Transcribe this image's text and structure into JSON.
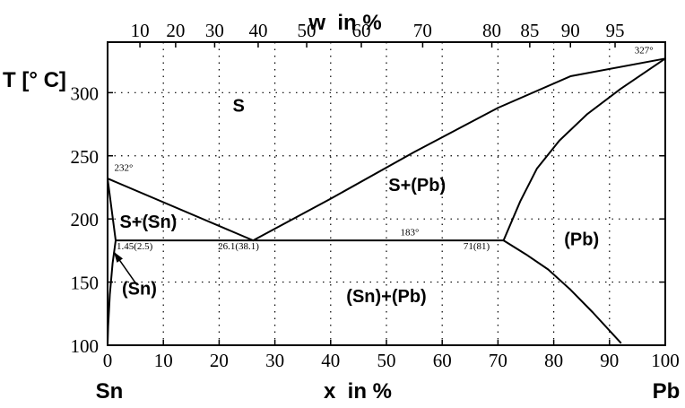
{
  "diagram": {
    "top_axis": {
      "title": "w  in %",
      "ticks": [
        {
          "label": "10",
          "x": 5.8
        },
        {
          "label": "20",
          "x": 12.2
        },
        {
          "label": "30",
          "x": 19.2
        },
        {
          "label": "40",
          "x": 27.0
        },
        {
          "label": "50",
          "x": 35.7
        },
        {
          "label": "60",
          "x": 45.5
        },
        {
          "label": "70",
          "x": 56.5
        },
        {
          "label": "80",
          "x": 68.9
        },
        {
          "label": "85",
          "x": 75.7
        },
        {
          "label": "90",
          "x": 83.0
        },
        {
          "label": "95",
          "x": 91.0
        }
      ]
    },
    "bottom_axis": {
      "title": "x  in %",
      "left_label": "Sn",
      "right_label": "Pb",
      "range": [
        0,
        100
      ],
      "ticks": [
        "0",
        "10",
        "20",
        "30",
        "40",
        "50",
        "60",
        "70",
        "80",
        "90",
        "100"
      ]
    },
    "left_axis": {
      "title": "T [° C]",
      "range": [
        100,
        340
      ],
      "ticks": [
        "100",
        "150",
        "200",
        "250",
        "300"
      ]
    },
    "grid": true,
    "grid_style": "dotted",
    "curves": [
      {
        "name": "liquidus-left",
        "points": [
          [
            0,
            232
          ],
          [
            26.1,
            183
          ]
        ]
      },
      {
        "name": "liquidus-right",
        "points": [
          [
            26.1,
            183
          ],
          [
            40,
            216
          ],
          [
            55,
            253
          ],
          [
            70,
            288
          ],
          [
            83,
            313
          ],
          [
            100,
            327
          ]
        ]
      },
      {
        "name": "eutectic-line",
        "points": [
          [
            1.45,
            183
          ],
          [
            71,
            183
          ]
        ]
      },
      {
        "name": "solidus-left",
        "points": [
          [
            0,
            232
          ],
          [
            1.45,
            183
          ]
        ]
      },
      {
        "name": "solvus-left",
        "points": [
          [
            1.45,
            183
          ],
          [
            0.9,
            165
          ],
          [
            0.4,
            140
          ],
          [
            0.1,
            115
          ],
          [
            0,
            100
          ]
        ]
      },
      {
        "name": "solidus-right",
        "points": [
          [
            71,
            183
          ],
          [
            74,
            214
          ],
          [
            77,
            240
          ],
          [
            81,
            262
          ],
          [
            86,
            283
          ],
          [
            92,
            303
          ],
          [
            100,
            327
          ]
        ]
      },
      {
        "name": "solvus-right",
        "points": [
          [
            71,
            183
          ],
          [
            75,
            172
          ],
          [
            79,
            160
          ],
          [
            83,
            144
          ],
          [
            87,
            126
          ],
          [
            92,
            102
          ]
        ]
      }
    ],
    "point_labels": [
      {
        "text": "232°",
        "x": 1.2,
        "T": 238
      },
      {
        "text": "327°",
        "x": 94.5,
        "T": 331
      },
      {
        "text": "183°",
        "x": 52.5,
        "T": 187
      },
      {
        "text": "1.45(2.5)",
        "x": 1.6,
        "T": 176
      },
      {
        "text": "26.1(38.1)",
        "x": 19.8,
        "T": 176
      },
      {
        "text": "71(81)",
        "x": 63.8,
        "T": 176
      }
    ],
    "region_labels": [
      {
        "text": "S",
        "x": 23.5,
        "T": 285
      },
      {
        "text": "S+(Pb)",
        "x": 55.5,
        "T": 222
      },
      {
        "text": "S+(Sn)",
        "x": 7.3,
        "T": 193
      },
      {
        "text": "(Pb)",
        "x": 85,
        "T": 179
      },
      {
        "text": "(Sn)+(Pb)",
        "x": 50,
        "T": 134
      },
      {
        "text": "(Sn)",
        "x": 5.7,
        "T": 140
      }
    ],
    "pointer": {
      "from_x": 4.9,
      "from_T": 150,
      "to_x": 1.1,
      "to_T": 174
    },
    "line_color": "#000000",
    "grid_color": "#000000"
  }
}
